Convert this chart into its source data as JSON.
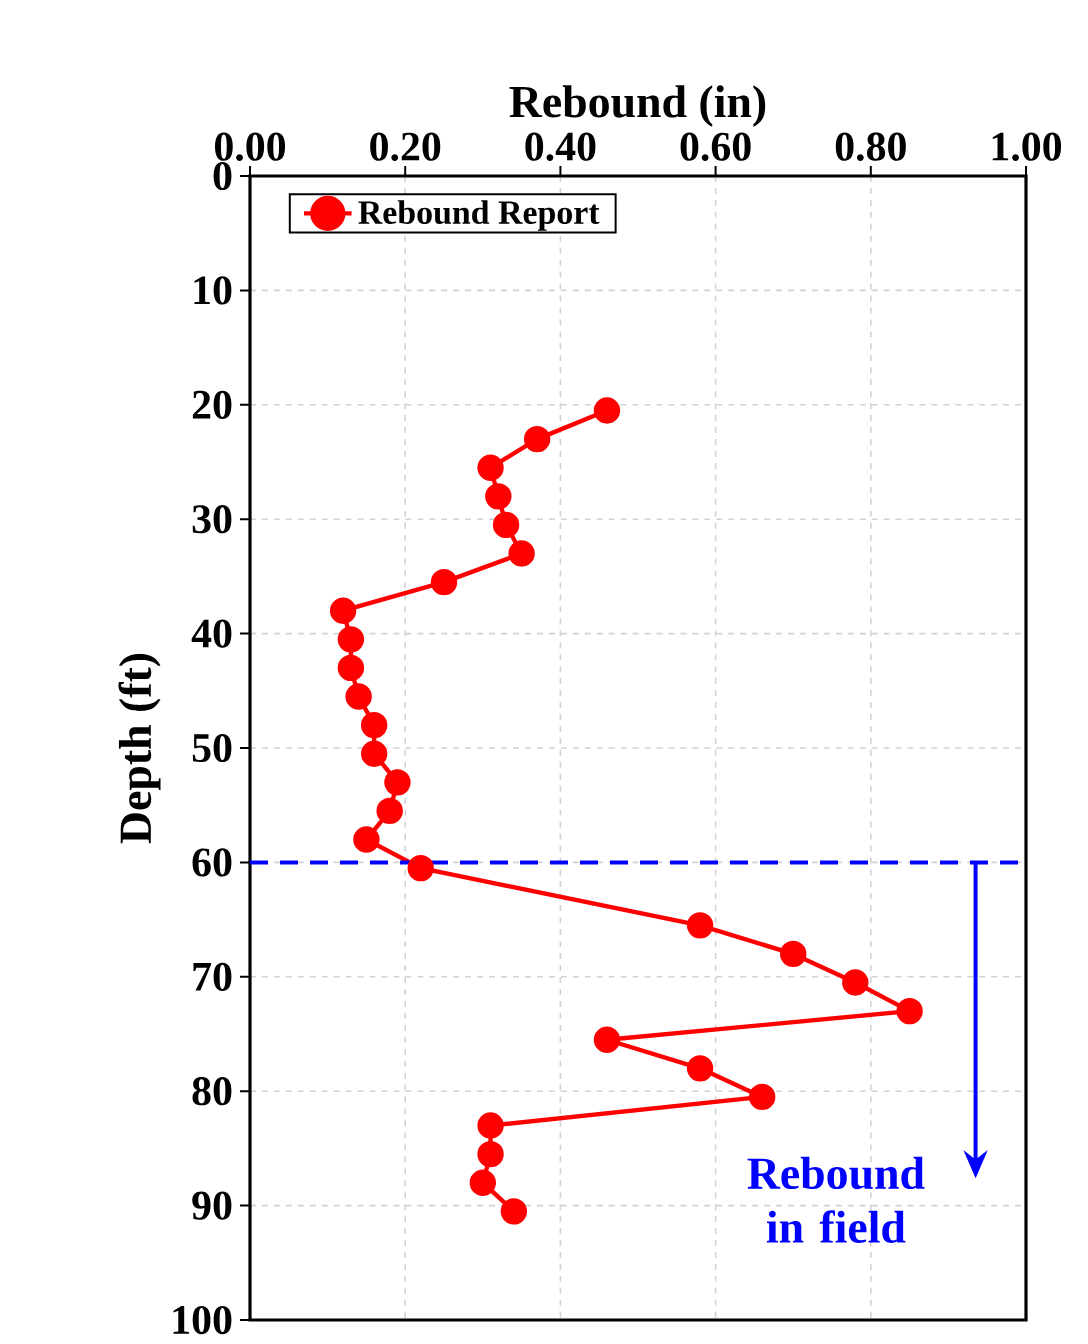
{
  "chart_data": {
    "type": "line",
    "xlabel": "Rebound (in)",
    "ylabel": "Depth (ft)",
    "xlim": [
      0,
      1
    ],
    "xticks": [
      {
        "value": 0,
        "label": "0.00"
      },
      {
        "value": 0.2,
        "label": "0.20"
      },
      {
        "value": 0.4,
        "label": "0.40"
      },
      {
        "value": 0.6,
        "label": "0.60"
      },
      {
        "value": 0.8,
        "label": "0.80"
      },
      {
        "value": 1,
        "label": "1.00"
      }
    ],
    "ylim": [
      100,
      0
    ],
    "yticks": [
      0,
      10,
      20,
      30,
      40,
      50,
      60,
      70,
      80,
      90,
      100
    ],
    "series": [
      {
        "name": "Rebound Report",
        "color": "#ff0000",
        "x": [
          0.46,
          0.37,
          0.31,
          0.32,
          0.33,
          0.35,
          0.25,
          0.12,
          0.13,
          0.13,
          0.14,
          0.16,
          0.16,
          0.19,
          0.18,
          0.15,
          0.22,
          0.58,
          0.7,
          0.78,
          0.85,
          0.46,
          0.58,
          0.66,
          0.31,
          0.31,
          0.3,
          0.34
        ],
        "values": [
          20.5,
          23,
          25.5,
          28,
          30.5,
          33,
          35.5,
          38,
          40.5,
          43,
          45.5,
          48,
          50.5,
          53,
          55.5,
          58,
          60.5,
          65.5,
          68,
          70.5,
          73,
          75.5,
          78,
          80.5,
          83,
          85.5,
          88,
          90.5
        ]
      }
    ],
    "ref_lines": [
      {
        "axis": "y",
        "value": 60,
        "color": "#0000ff",
        "line_style": "dashed"
      }
    ],
    "annotations": [
      "Rebound in field"
    ],
    "grid": true,
    "legend": "top left",
    "marker": "circle",
    "line_style": "solid"
  }
}
